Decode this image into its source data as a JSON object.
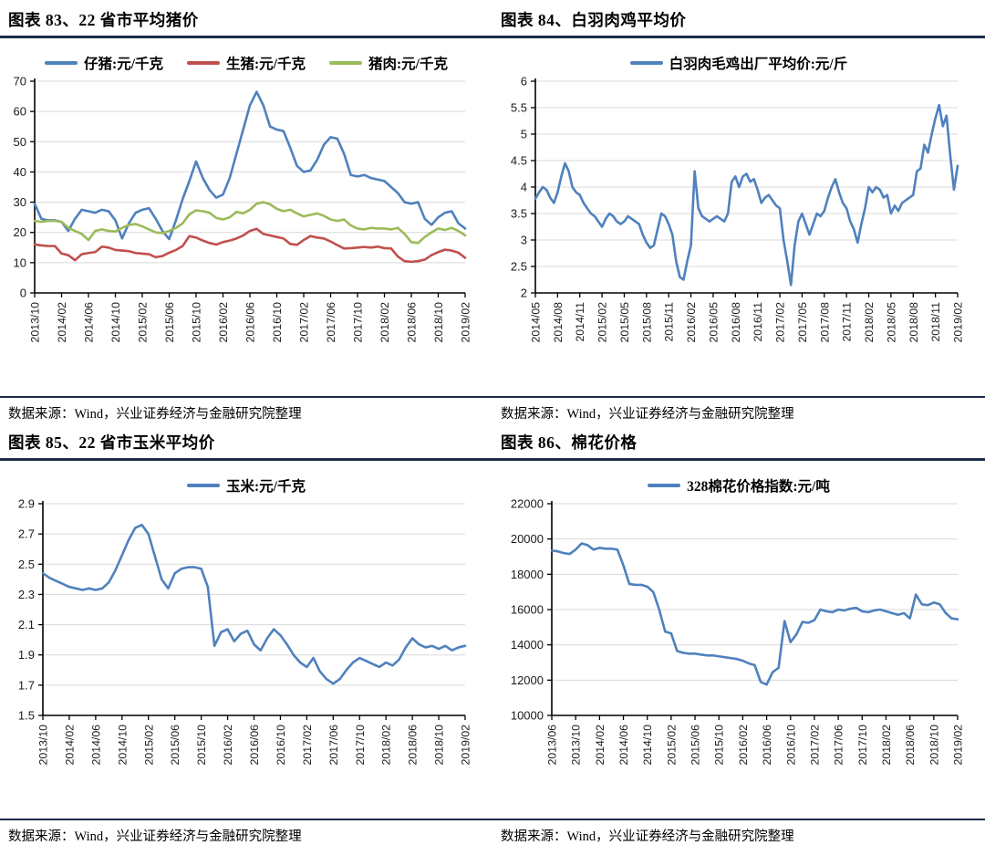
{
  "styles": {
    "rule_color": "#1c2b4a",
    "grid_color": "#d9d9d9",
    "axis_color": "#000000",
    "series_blue": "#4f81bd",
    "series_red": "#c0504d",
    "series_green": "#9bbb59"
  },
  "chart_data": [
    {
      "id": "chart-83",
      "type": "line",
      "title": "图表 83、22 省市平均猪价",
      "source": "数据来源：Wind，兴业证券经济与金融研究院整理",
      "ylim": [
        0,
        70
      ],
      "y_ticks": [
        "0",
        "10",
        "20",
        "30",
        "40",
        "50",
        "60",
        "70"
      ],
      "grid": true,
      "legend_position": "top",
      "x_labels": [
        "2013/10",
        "2014/02",
        "2014/06",
        "2014/10",
        "2015/02",
        "2015/06",
        "2015/10",
        "2016/02",
        "2016/06",
        "2016/10",
        "2017/02",
        "2017/06",
        "2017/10",
        "2018/02",
        "2018/06",
        "2018/10",
        "2019/02"
      ],
      "series": [
        {
          "name": "仔猪:元/千克",
          "color": "#4f81bd",
          "values": [
            29.5,
            24.5,
            24.0,
            24.0,
            23.5,
            20.5,
            24.5,
            27.5,
            27.0,
            26.5,
            27.5,
            27.0,
            24.0,
            18.0,
            23.0,
            26.5,
            27.5,
            28.0,
            24.5,
            20.5,
            17.8,
            24.0,
            31.0,
            37.0,
            43.5,
            38.0,
            34.0,
            31.5,
            32.5,
            38.0,
            46.0,
            54.0,
            62.0,
            66.5,
            62.0,
            55.0,
            54.0,
            53.5,
            48.0,
            42.0,
            40.0,
            40.5,
            44.0,
            49.0,
            51.5,
            51.0,
            46.0,
            39.0,
            38.5,
            39.0,
            38.0,
            37.5,
            37.0,
            35.0,
            33.0,
            30.0,
            29.5,
            30.0,
            24.5,
            22.5,
            25.0,
            26.5,
            27.0,
            23.0,
            21.3
          ]
        },
        {
          "name": "生猪:元/千克",
          "color": "#c0504d",
          "values": [
            16.0,
            15.7,
            15.5,
            15.5,
            13.0,
            12.5,
            10.8,
            12.8,
            13.2,
            13.5,
            15.3,
            15.0,
            14.2,
            14.0,
            13.8,
            13.2,
            13.0,
            12.8,
            11.8,
            12.2,
            13.3,
            14.2,
            15.5,
            18.8,
            18.3,
            17.3,
            16.5,
            16.0,
            16.8,
            17.3,
            18.0,
            19.0,
            20.5,
            21.2,
            19.5,
            19.0,
            18.5,
            18.0,
            16.2,
            15.9,
            17.5,
            18.8,
            18.3,
            18.0,
            17.0,
            15.8,
            14.7,
            14.8,
            15.0,
            15.2,
            15.0,
            15.3,
            14.8,
            14.7,
            12.0,
            10.5,
            10.3,
            10.5,
            11.0,
            12.5,
            13.5,
            14.3,
            14.0,
            13.3,
            11.6
          ]
        },
        {
          "name": "猪肉:元/千克",
          "color": "#9bbb59",
          "values": [
            23.8,
            23.5,
            23.8,
            23.8,
            23.5,
            21.5,
            20.5,
            19.5,
            17.5,
            20.5,
            21.0,
            20.5,
            20.3,
            21.5,
            22.5,
            22.8,
            22.0,
            21.0,
            20.0,
            19.8,
            20.5,
            21.5,
            23.0,
            26.0,
            27.3,
            27.0,
            26.5,
            24.8,
            24.3,
            25.0,
            26.8,
            26.3,
            27.5,
            29.5,
            30.0,
            29.3,
            27.8,
            27.0,
            27.5,
            26.3,
            25.3,
            25.8,
            26.3,
            25.5,
            24.3,
            23.8,
            24.3,
            22.3,
            21.3,
            21.0,
            21.5,
            21.3,
            21.3,
            21.0,
            21.5,
            19.5,
            16.8,
            16.5,
            18.5,
            20.0,
            21.3,
            20.8,
            21.5,
            20.5,
            19.0
          ]
        }
      ]
    },
    {
      "id": "chart-84",
      "type": "line",
      "title": "图表 84、白羽肉鸡平均价",
      "source": "数据来源：Wind，兴业证券经济与金融研究院整理",
      "ylim": [
        2,
        6
      ],
      "y_ticks": [
        "2",
        "2.5",
        "3",
        "3.5",
        "4",
        "4.5",
        "5",
        "5.5",
        "6"
      ],
      "grid": true,
      "legend_position": "top",
      "x_labels": [
        "2014/05",
        "2014/08",
        "2014/11",
        "2015/02",
        "2015/05",
        "2015/08",
        "2015/11",
        "2016/02",
        "2016/05",
        "2016/08",
        "2016/11",
        "2017/02",
        "2017/05",
        "2017/08",
        "2017/11",
        "2018/02",
        "2018/05",
        "2018/08",
        "2018/11",
        "2019/02"
      ],
      "series": [
        {
          "name": "白羽肉毛鸡出厂平均价:元/斤",
          "color": "#4f81bd",
          "values": [
            3.78,
            3.9,
            4.0,
            3.95,
            3.8,
            3.7,
            3.9,
            4.2,
            4.45,
            4.3,
            4.0,
            3.9,
            3.85,
            3.7,
            3.6,
            3.5,
            3.45,
            3.35,
            3.25,
            3.4,
            3.5,
            3.45,
            3.35,
            3.3,
            3.35,
            3.45,
            3.4,
            3.35,
            3.3,
            3.1,
            2.95,
            2.85,
            2.9,
            3.2,
            3.5,
            3.45,
            3.3,
            3.1,
            2.6,
            2.3,
            2.25,
            2.6,
            2.9,
            4.3,
            3.6,
            3.45,
            3.4,
            3.35,
            3.4,
            3.45,
            3.4,
            3.35,
            3.5,
            4.1,
            4.2,
            4.0,
            4.2,
            4.25,
            4.1,
            4.15,
            3.95,
            3.7,
            3.8,
            3.85,
            3.75,
            3.65,
            3.6,
            3.0,
            2.6,
            2.15,
            2.9,
            3.35,
            3.5,
            3.3,
            3.1,
            3.3,
            3.5,
            3.45,
            3.55,
            3.8,
            4.0,
            4.15,
            3.9,
            3.7,
            3.6,
            3.35,
            3.2,
            2.95,
            3.3,
            3.6,
            4.0,
            3.9,
            4.0,
            3.95,
            3.8,
            3.85,
            3.5,
            3.65,
            3.55,
            3.7,
            3.75,
            3.8,
            3.85,
            4.3,
            4.35,
            4.8,
            4.65,
            5.0,
            5.3,
            5.55,
            5.15,
            5.35,
            4.6,
            3.95,
            4.4
          ]
        }
      ]
    },
    {
      "id": "chart-85",
      "type": "line",
      "title": "图表 85、22 省市玉米平均价",
      "source": "数据来源：Wind，兴业证券经济与金融研究院整理",
      "ylim": [
        1.5,
        2.9
      ],
      "y_ticks": [
        "1.5",
        "1.7",
        "1.9",
        "2.1",
        "2.3",
        "2.5",
        "2.7",
        "2.9"
      ],
      "grid": true,
      "legend_position": "top",
      "x_labels": [
        "2013/10",
        "2014/02",
        "2014/06",
        "2014/10",
        "2015/02",
        "2015/06",
        "2015/10",
        "2016/02",
        "2016/06",
        "2016/10",
        "2017/02",
        "2017/06",
        "2017/10",
        "2018/02",
        "2018/06",
        "2018/10",
        "2019/02"
      ],
      "series": [
        {
          "name": "玉米:元/千克",
          "color": "#4f81bd",
          "values": [
            2.44,
            2.41,
            2.39,
            2.37,
            2.35,
            2.34,
            2.33,
            2.34,
            2.33,
            2.34,
            2.38,
            2.46,
            2.56,
            2.66,
            2.74,
            2.76,
            2.7,
            2.55,
            2.4,
            2.34,
            2.44,
            2.47,
            2.48,
            2.48,
            2.47,
            2.35,
            1.96,
            2.05,
            2.07,
            1.99,
            2.04,
            2.06,
            1.97,
            1.93,
            2.01,
            2.07,
            2.03,
            1.97,
            1.9,
            1.85,
            1.82,
            1.88,
            1.79,
            1.74,
            1.71,
            1.74,
            1.8,
            1.85,
            1.88,
            1.86,
            1.84,
            1.82,
            1.85,
            1.83,
            1.87,
            1.95,
            2.01,
            1.97,
            1.95,
            1.96,
            1.94,
            1.96,
            1.93,
            1.95,
            1.96
          ]
        }
      ]
    },
    {
      "id": "chart-86",
      "type": "line",
      "title": "图表 86、棉花价格",
      "source": "数据来源：Wind，兴业证券经济与金融研究院整理",
      "ylim": [
        10000,
        22000
      ],
      "y_ticks": [
        "10000",
        "12000",
        "14000",
        "16000",
        "18000",
        "20000",
        "22000"
      ],
      "grid": true,
      "legend_position": "top",
      "x_labels": [
        "2013/06",
        "2013/10",
        "2014/02",
        "2014/06",
        "2014/10",
        "2015/02",
        "2015/06",
        "2015/10",
        "2016/02",
        "2016/06",
        "2016/10",
        "2017/02",
        "2017/06",
        "2017/10",
        "2018/02",
        "2018/06",
        "2018/10",
        "2019/02"
      ],
      "series": [
        {
          "name": "328棉花价格指数:元/吨",
          "color": "#4f81bd",
          "values": [
            19350,
            19300,
            19200,
            19150,
            19400,
            19750,
            19650,
            19400,
            19500,
            19450,
            19450,
            19400,
            18500,
            17450,
            17400,
            17400,
            17300,
            17000,
            16000,
            14750,
            14650,
            13650,
            13550,
            13500,
            13500,
            13450,
            13400,
            13400,
            13350,
            13300,
            13250,
            13200,
            13100,
            12950,
            12850,
            11900,
            11750,
            12450,
            12700,
            15350,
            14150,
            14600,
            15300,
            15250,
            15400,
            16000,
            15900,
            15850,
            16000,
            15950,
            16050,
            16100,
            15900,
            15850,
            15950,
            16000,
            15900,
            15800,
            15700,
            15800,
            15500,
            16850,
            16300,
            16250,
            16400,
            16300,
            15800,
            15500,
            15450
          ]
        }
      ]
    }
  ]
}
